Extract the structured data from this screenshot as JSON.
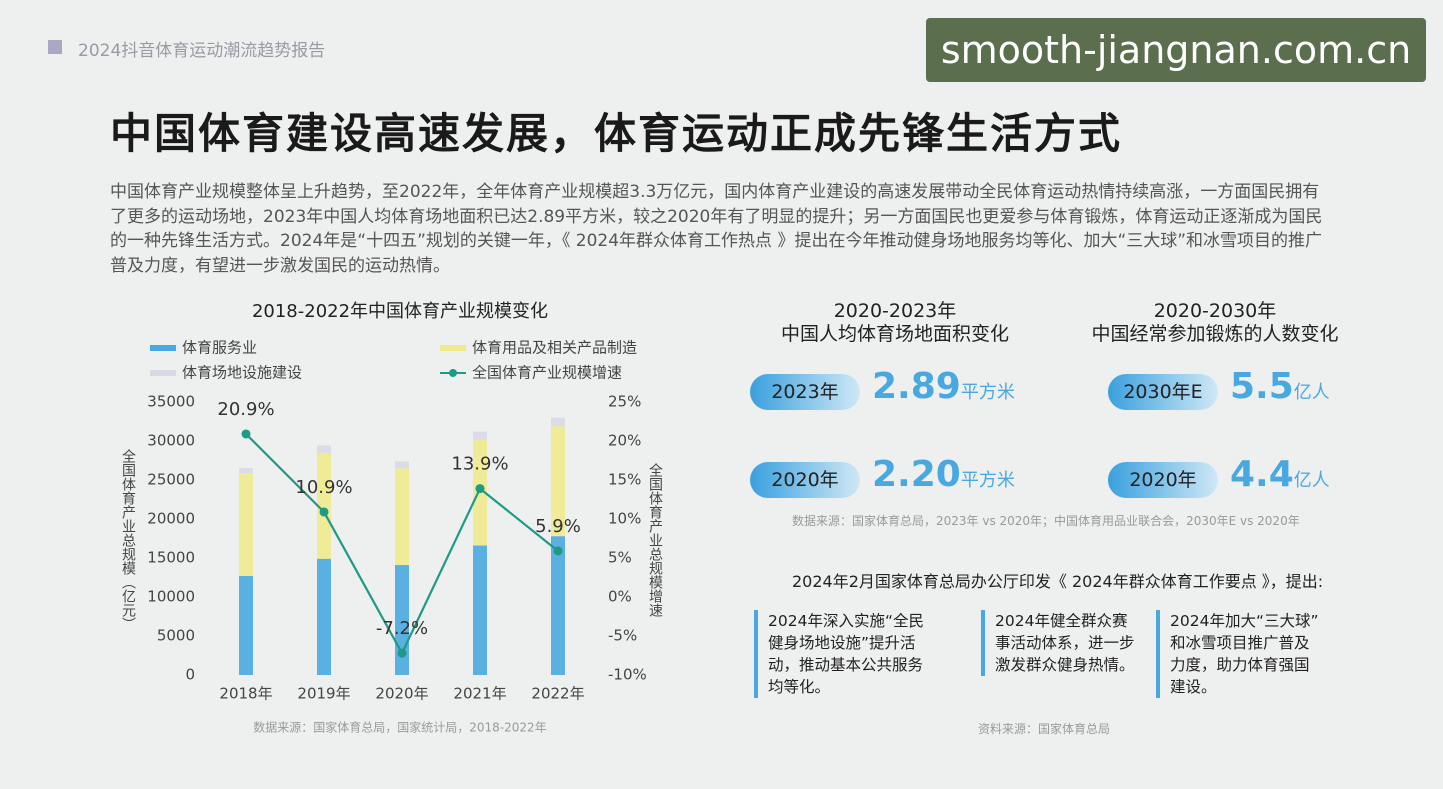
{
  "header": {
    "report": "2024抖音体育运动潮流趋势报告",
    "watermark": "smooth-jiangnan.com.cn"
  },
  "title": "中国体育建设高速发展，体育运动正成先锋生活方式",
  "intro": "中国体育产业规模整体呈上升趋势，至2022年，全年体育产业规模超3.3万亿元，国内体育产业建设的高速发展带动全民体育运动热情持续高涨，一方面国民拥有了更多的运动场地，2023年中国人均体育场地面积已达2.89平方米，较之2020年有了明显的提升；另一方面国民也更爱参与体育锻炼，体育运动正逐渐成为国民的一种先锋生活方式。2024年是“十四五”规划的关键一年，《 2024年群众体育工作热点 》提出在今年推动健身场地服务均等化、加大“三大球”和冰雪项目的推广普及力度，有望进一步激发国民的运动热情。",
  "chart_data": {
    "type": "bar",
    "title": "2018-2022年中国体育产业规模变化",
    "y_label": "全国体育产业总规模（亿元）",
    "y2_label": "全国体育产业总规模增速",
    "source": "数据来源：国家体育总局，国家统计局，2018-2022年",
    "categories": [
      "2018年",
      "2019年",
      "2020年",
      "2021年",
      "2022年"
    ],
    "stacked": true,
    "series": [
      {
        "name": "体育服务业",
        "color": "#4aa8e0",
        "values": [
          12700,
          14900,
          14100,
          16600,
          17800
        ]
      },
      {
        "name": "体育用品及相关产品制造",
        "color": "#efea8c",
        "values": [
          13200,
          13600,
          12400,
          13600,
          14100
        ]
      },
      {
        "name": "体育场地设施建设",
        "color": "#d9d9e6",
        "values": [
          650,
          940,
          900,
          1000,
          1100
        ]
      },
      {
        "name": "全国体育产业规模增速",
        "type": "line",
        "axis": "y2",
        "color": "#1e9a86",
        "values": [
          20.9,
          10.9,
          -7.2,
          13.9,
          5.9
        ],
        "value_labels": [
          "20.9%",
          "10.9%",
          "-7.2%",
          "13.9%",
          "5.9%"
        ]
      }
    ],
    "ylim": [
      0,
      35000
    ],
    "yticks": [
      0,
      5000,
      10000,
      15000,
      20000,
      25000,
      30000,
      35000
    ],
    "y2lim": [
      -10,
      25
    ],
    "y2ticks": [
      {
        "value": -10,
        "label": "-10%"
      },
      {
        "value": -5,
        "label": "-5%"
      },
      {
        "value": 0,
        "label": "0%"
      },
      {
        "value": 5,
        "label": "5%"
      },
      {
        "value": 10,
        "label": "10%"
      },
      {
        "value": 15,
        "label": "15%"
      },
      {
        "value": 20,
        "label": "20%"
      },
      {
        "value": 25,
        "label": "25%"
      }
    ]
  },
  "area_panel": {
    "title": [
      "2020-2023年",
      "中国人均体育场地面积变化"
    ],
    "rows": [
      {
        "year": "2023年",
        "value": "2.89",
        "unit": "平方米"
      },
      {
        "year": "2020年",
        "value": "2.20",
        "unit": "平方米"
      }
    ]
  },
  "exercise_panel": {
    "title": [
      "2020-2030年",
      "中国经常参加锻炼的人数变化"
    ],
    "rows": [
      {
        "year": "2030年E",
        "value": "5.5",
        "unit": "亿人"
      },
      {
        "year": "2020年",
        "value": "4.4",
        "unit": "亿人"
      }
    ]
  },
  "panel_source": "数据来源：国家体育总局，2023年 vs 2020年；中国体育用品业联合会，2030年E vs 2020年",
  "policy": {
    "heading": "2024年2月国家体育总局办公厅印发《 2024年群众体育工作要点 》，提出:",
    "items": [
      "2024年深入实施“全民健身场地设施”提升活动，推动基本公共服务均等化。",
      "2024年健全群众赛事活动体系，进一步激发群众健身热情。",
      "2024年加大“三大球”和冰雪项目推广普及力度，助力体育强国建设。"
    ],
    "source": "资料来源：国家体育总局"
  }
}
